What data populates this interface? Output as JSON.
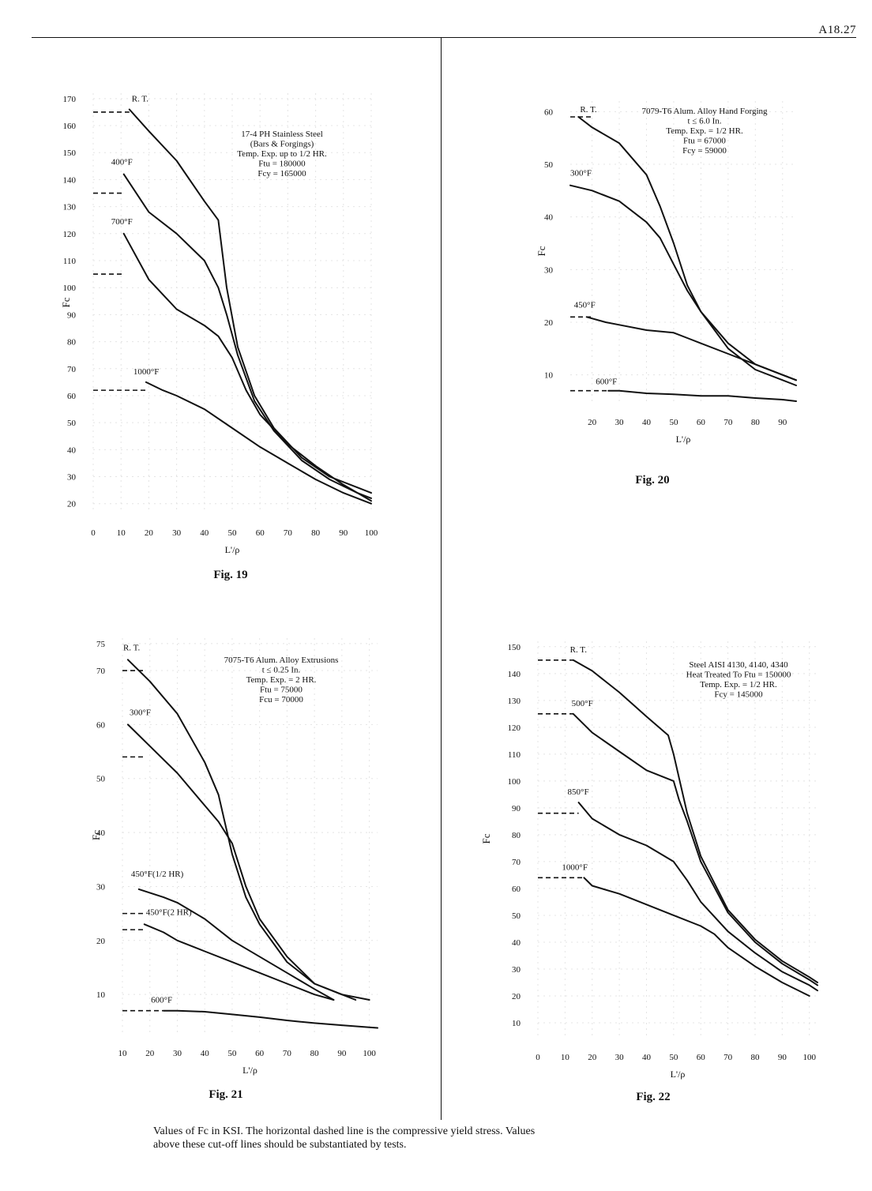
{
  "page": {
    "page_number": "A18.27",
    "footnote_line1": "Values of Fc in KSI.  The horizontal dashed line is the compressive yield stress.  Values",
    "footnote_line2": "above these cut-off lines should be substantiated by tests."
  },
  "chart_data": [
    {
      "type": "line",
      "figure": "Fig. 19",
      "ylabel": "Fc",
      "xlabel": "L'/ρ",
      "xlim": [
        0,
        100
      ],
      "ylim": [
        17,
        172
      ],
      "x_ticks": [
        0,
        10,
        20,
        30,
        40,
        50,
        60,
        70,
        80,
        90,
        100
      ],
      "y_ticks": [
        20,
        30,
        40,
        50,
        60,
        70,
        80,
        90,
        100,
        110,
        120,
        130,
        140,
        150,
        160,
        170
      ],
      "annotation": [
        "17-4 PH Stainless Steel",
        "(Bars & Forgings)",
        "Temp. Exp. up to 1/2 HR.",
        "Ftu = 180000",
        "Fcy = 165000"
      ],
      "series": [
        {
          "name": "R. T.",
          "x": [
            13,
            20,
            30,
            40,
            45,
            48,
            52,
            58,
            65,
            75,
            85,
            95,
            100
          ],
          "y": [
            166,
            158,
            147,
            132,
            125,
            100,
            78,
            60,
            48,
            37,
            30,
            26,
            24
          ],
          "cutoff": 165
        },
        {
          "name": "400°F",
          "x": [
            11,
            20,
            30,
            40,
            45,
            48,
            52,
            58,
            65,
            75,
            85,
            95,
            100
          ],
          "y": [
            142,
            128,
            120,
            110,
            100,
            90,
            75,
            58,
            47,
            36,
            29,
            24,
            22
          ],
          "cutoff": 135
        },
        {
          "name": "700°F",
          "x": [
            11,
            20,
            30,
            40,
            45,
            50,
            55,
            60,
            70,
            80,
            90,
            100
          ],
          "y": [
            120,
            103,
            92,
            86,
            82,
            74,
            62,
            53,
            42,
            34,
            27,
            21
          ],
          "cutoff": 105
        },
        {
          "name": "1000°F",
          "x": [
            19,
            25,
            30,
            40,
            50,
            60,
            70,
            80,
            90,
            100
          ],
          "y": [
            65,
            62,
            60,
            55,
            48,
            41,
            35,
            29,
            24,
            20
          ],
          "cutoff": 62
        }
      ]
    },
    {
      "type": "line",
      "figure": "Fig. 20",
      "ylabel": "Fc",
      "xlabel": "L'/ρ",
      "xlim": [
        12,
        95
      ],
      "ylim": [
        5,
        62
      ],
      "x_ticks": [
        20,
        30,
        40,
        50,
        60,
        70,
        80,
        90
      ],
      "y_ticks": [
        10,
        20,
        30,
        40,
        50,
        60
      ],
      "annotation": [
        "7079-T6 Alum. Alloy Hand Forging",
        "t ≤  6.0 In.",
        "Temp. Exp. = 1/2 HR.",
        "Ftu = 67000",
        "Fcy = 59000"
      ],
      "series": [
        {
          "name": "R. T.",
          "x": [
            15,
            20,
            30,
            40,
            45,
            50,
            55,
            60,
            70,
            80,
            90,
            95
          ],
          "y": [
            59,
            57,
            54,
            48,
            42,
            35,
            27,
            22,
            16,
            12,
            10,
            9
          ],
          "cutoff": 59
        },
        {
          "name": "300°F",
          "x": [
            12,
            20,
            30,
            40,
            45,
            50,
            55,
            60,
            70,
            80,
            90,
            95
          ],
          "y": [
            46,
            45,
            43,
            39,
            36,
            31,
            26,
            22,
            15,
            11,
            9,
            8
          ],
          "cutoff": null
        },
        {
          "name": "450°F",
          "x": [
            18,
            25,
            30,
            40,
            50,
            55,
            60,
            70,
            80,
            90,
            95
          ],
          "y": [
            21,
            20,
            19.5,
            18.5,
            18,
            17,
            16,
            14,
            12,
            10,
            9
          ],
          "cutoff": 21
        },
        {
          "name": "600°F",
          "x": [
            26,
            30,
            40,
            50,
            60,
            70,
            80,
            90,
            95
          ],
          "y": [
            7,
            7,
            6.5,
            6.3,
            6,
            6,
            5.6,
            5.3,
            5
          ],
          "cutoff": 7
        }
      ]
    },
    {
      "type": "line",
      "figure": "Fig. 21",
      "ylabel": "Fc",
      "xlabel": "L'/ρ",
      "xlim": [
        10,
        103
      ],
      "ylim": [
        3,
        76
      ],
      "x_ticks": [
        10,
        20,
        30,
        40,
        50,
        60,
        70,
        80,
        90,
        100
      ],
      "y_ticks": [
        10,
        20,
        30,
        40,
        50,
        60,
        70,
        75
      ],
      "annotation": [
        "7075-T6 Alum. Alloy Extrusions",
        "t ≤  0.25 In.",
        "Temp. Exp. = 2 HR.",
        "Ftu = 75000",
        "Fcu = 70000"
      ],
      "series": [
        {
          "name": "R. T.",
          "x": [
            12,
            20,
            30,
            40,
            45,
            50,
            55,
            60,
            70,
            80,
            90,
            100
          ],
          "y": [
            72,
            68,
            62,
            53,
            47,
            36,
            28,
            23,
            16,
            12,
            10,
            9
          ],
          "cutoff": 70
        },
        {
          "name": "300°F",
          "x": [
            12,
            20,
            30,
            40,
            45,
            50,
            55,
            60,
            70,
            80,
            90,
            95
          ],
          "y": [
            60,
            56,
            51,
            45,
            42,
            38,
            30,
            24,
            17,
            12,
            10,
            9
          ],
          "cutoff": 54
        },
        {
          "name": "450°F(1/2 HR)",
          "x": [
            16,
            25,
            30,
            40,
            50,
            60,
            70,
            80,
            87
          ],
          "y": [
            29.5,
            28,
            27,
            24,
            20,
            17,
            14,
            11,
            9
          ],
          "cutoff": 25
        },
        {
          "name": "450°F(2 HR)",
          "x": [
            18,
            25,
            30,
            40,
            50,
            60,
            70,
            80,
            87
          ],
          "y": [
            23,
            21.5,
            20,
            18,
            16,
            14,
            12,
            10,
            9
          ],
          "cutoff": 22
        },
        {
          "name": "600°F",
          "x": [
            25,
            30,
            40,
            50,
            60,
            70,
            80,
            90,
            100,
            103
          ],
          "y": [
            7,
            7,
            6.8,
            6.3,
            5.8,
            5.2,
            4.7,
            4.3,
            3.9,
            3.8
          ],
          "cutoff": 7
        }
      ]
    },
    {
      "type": "line",
      "figure": "Fig. 22",
      "ylabel": "Fc",
      "xlabel": "L'/ρ",
      "xlim": [
        0,
        103
      ],
      "ylim": [
        5,
        152
      ],
      "x_ticks": [
        0,
        10,
        20,
        30,
        40,
        50,
        60,
        70,
        80,
        90,
        100
      ],
      "y_ticks": [
        10,
        20,
        30,
        40,
        50,
        60,
        70,
        80,
        90,
        100,
        110,
        120,
        130,
        140,
        150
      ],
      "annotation": [
        "Steel AISI 4130, 4140, 4340",
        "Heat Treated To Ftu = 150000",
        "Temp. Exp. = 1/2 HR.",
        "Fcy = 145000"
      ],
      "series": [
        {
          "name": "R. T.",
          "x": [
            13,
            20,
            30,
            40,
            48,
            50,
            55,
            60,
            70,
            80,
            90,
            100,
            103
          ],
          "y": [
            145,
            141,
            133,
            124,
            117,
            110,
            88,
            72,
            52,
            41,
            33,
            27,
            25
          ],
          "cutoff": 145
        },
        {
          "name": "500°F",
          "x": [
            13,
            20,
            30,
            40,
            50,
            52,
            55,
            60,
            70,
            80,
            90,
            100,
            103
          ],
          "y": [
            125,
            118,
            111,
            104,
            100,
            93,
            85,
            70,
            51,
            40,
            32,
            26,
            24
          ],
          "cutoff": 125
        },
        {
          "name": "850°F",
          "x": [
            15,
            20,
            30,
            40,
            50,
            55,
            60,
            70,
            80,
            90,
            100,
            103
          ],
          "y": [
            92,
            86,
            80,
            76,
            70,
            63,
            55,
            44,
            36,
            29,
            24,
            22
          ],
          "cutoff": 88
        },
        {
          "name": "1000°F",
          "x": [
            17,
            20,
            30,
            40,
            50,
            60,
            65,
            70,
            80,
            90,
            100
          ],
          "y": [
            64,
            61,
            58,
            54,
            50,
            46,
            43,
            38,
            31,
            25,
            20
          ],
          "cutoff": 64
        }
      ]
    }
  ]
}
